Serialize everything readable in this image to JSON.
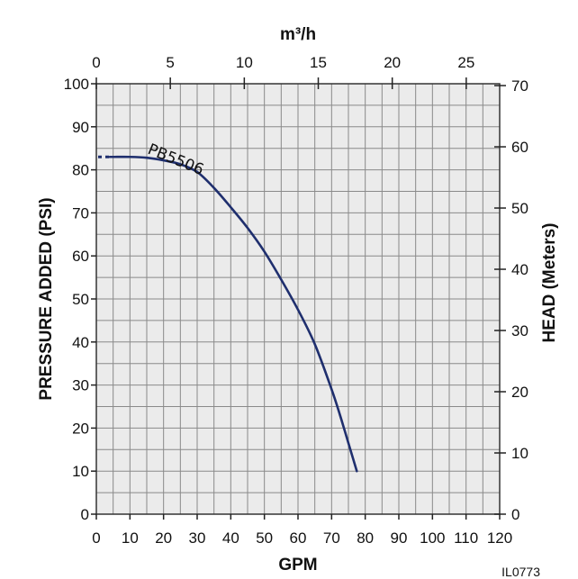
{
  "chart_data": {
    "type": "line",
    "title": "",
    "xlabel": "GPM",
    "ylabel": "PRESSURE ADDED (PSI)",
    "x_top_label": "m³/h",
    "y_right_label": "HEAD (Meters)",
    "xlim": [
      0,
      120
    ],
    "ylim": [
      0,
      100
    ],
    "x_top_lim": [
      0,
      27.26
    ],
    "y_right_lim": [
      0,
      70.3
    ],
    "x_ticks": [
      0,
      10,
      20,
      30,
      40,
      50,
      60,
      70,
      80,
      90,
      100,
      110,
      120
    ],
    "x_tick_labels": [
      "0",
      "10",
      "20",
      "30",
      "40",
      "50",
      "60",
      "70",
      "80",
      "90",
      "100",
      "110",
      "120"
    ],
    "y_ticks": [
      0,
      10,
      20,
      30,
      40,
      50,
      60,
      70,
      80,
      90,
      100
    ],
    "y_tick_labels": [
      "0",
      "10",
      "20",
      "30",
      "40",
      "50",
      "60",
      "70",
      "80",
      "90",
      "100"
    ],
    "x_top_ticks": [
      0,
      5,
      10,
      15,
      20,
      25
    ],
    "x_top_tick_labels": [
      "0",
      "5",
      "10",
      "15",
      "20",
      "25"
    ],
    "y_right_ticks": [
      0,
      10,
      20,
      30,
      40,
      50,
      60,
      70
    ],
    "y_right_tick_labels": [
      "0",
      "10",
      "20",
      "30",
      "40",
      "50",
      "60",
      "70"
    ],
    "grid": true,
    "legend": "none",
    "series": [
      {
        "name": "PB5506",
        "color": "#1f2f6e",
        "x": [
          0,
          5,
          10,
          15,
          20,
          25,
          30,
          35,
          40,
          45,
          50,
          55,
          60,
          65,
          70,
          72.5,
          75,
          77.5
        ],
        "y": [
          83,
          83,
          83,
          82.8,
          82.2,
          81.3,
          79.5,
          75.8,
          71.3,
          66.5,
          61,
          54.5,
          47.5,
          39.5,
          29,
          23,
          16.5,
          10
        ],
        "dashed_start_x": 4
      }
    ],
    "figure_id": "IL0773"
  }
}
